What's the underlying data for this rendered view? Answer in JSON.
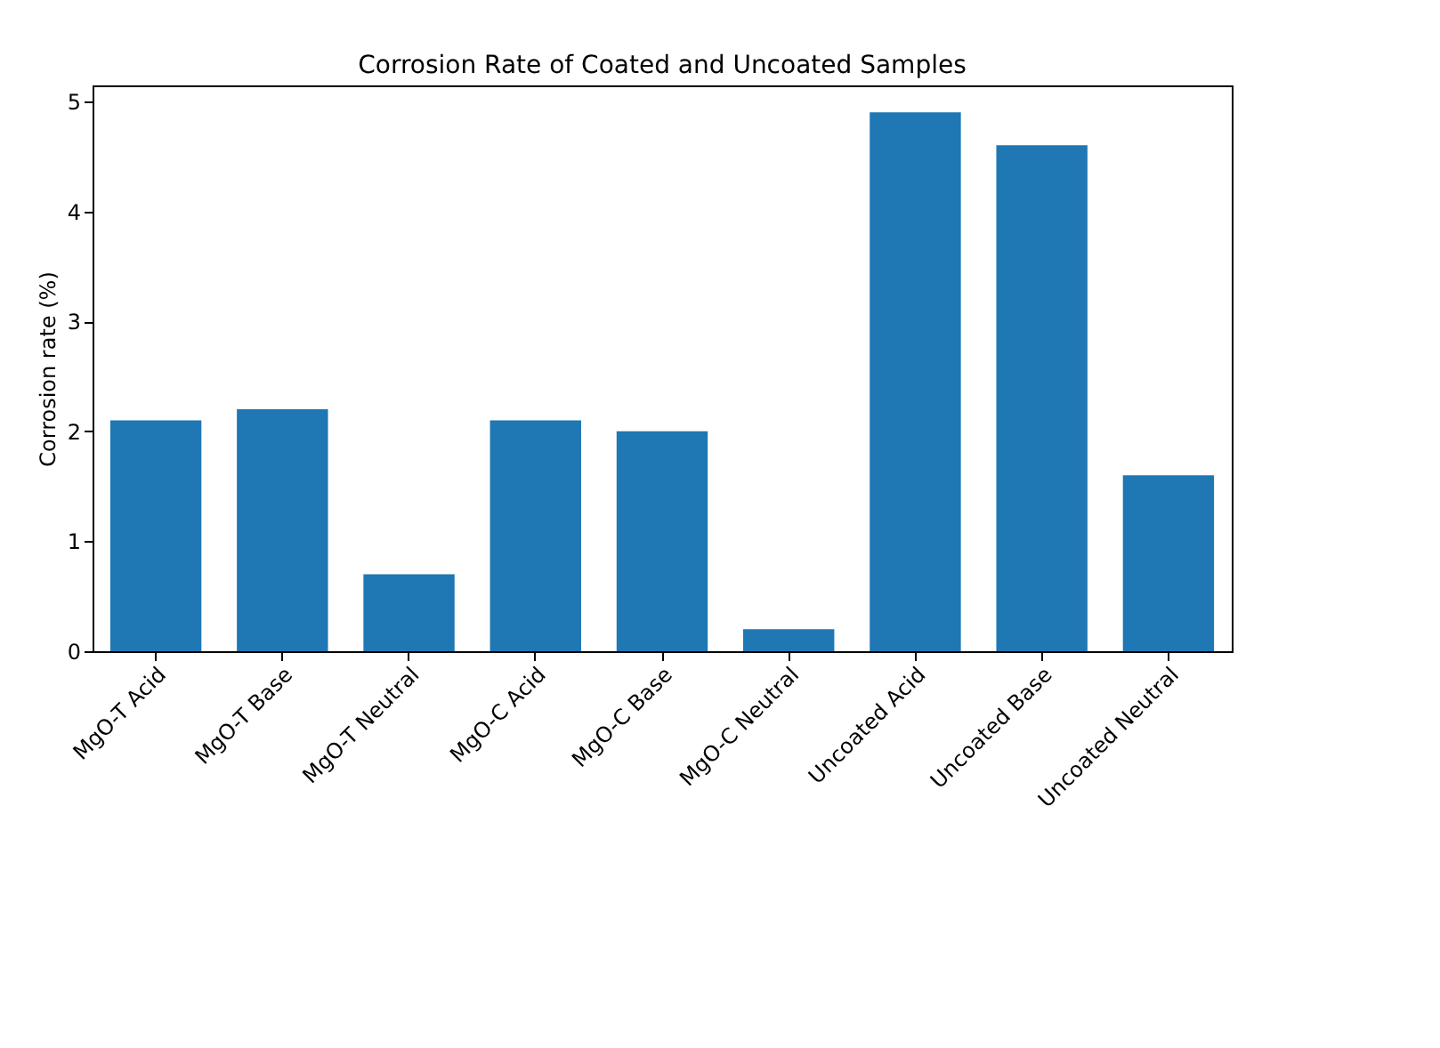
{
  "chart_data": {
    "type": "bar",
    "title": "Corrosion Rate of Coated and Uncoated Samples",
    "ylabel": "Corrosion rate (%)",
    "categories": [
      "MgO-T Acid",
      "MgO-T Base",
      "MgO-T Neutral",
      "MgO-C Acid",
      "MgO-C Base",
      "MgO-C Neutral",
      "Uncoated Acid",
      "Uncoated Base",
      "Uncoated Neutral"
    ],
    "values": [
      2.1,
      2.2,
      0.7,
      2.1,
      2.0,
      0.2,
      4.9,
      4.6,
      1.6
    ],
    "color": "#1f77b4",
    "ylim": [
      0,
      5.145
    ],
    "yticks": [
      0,
      1,
      2,
      3,
      4,
      5
    ],
    "grid": false
  }
}
